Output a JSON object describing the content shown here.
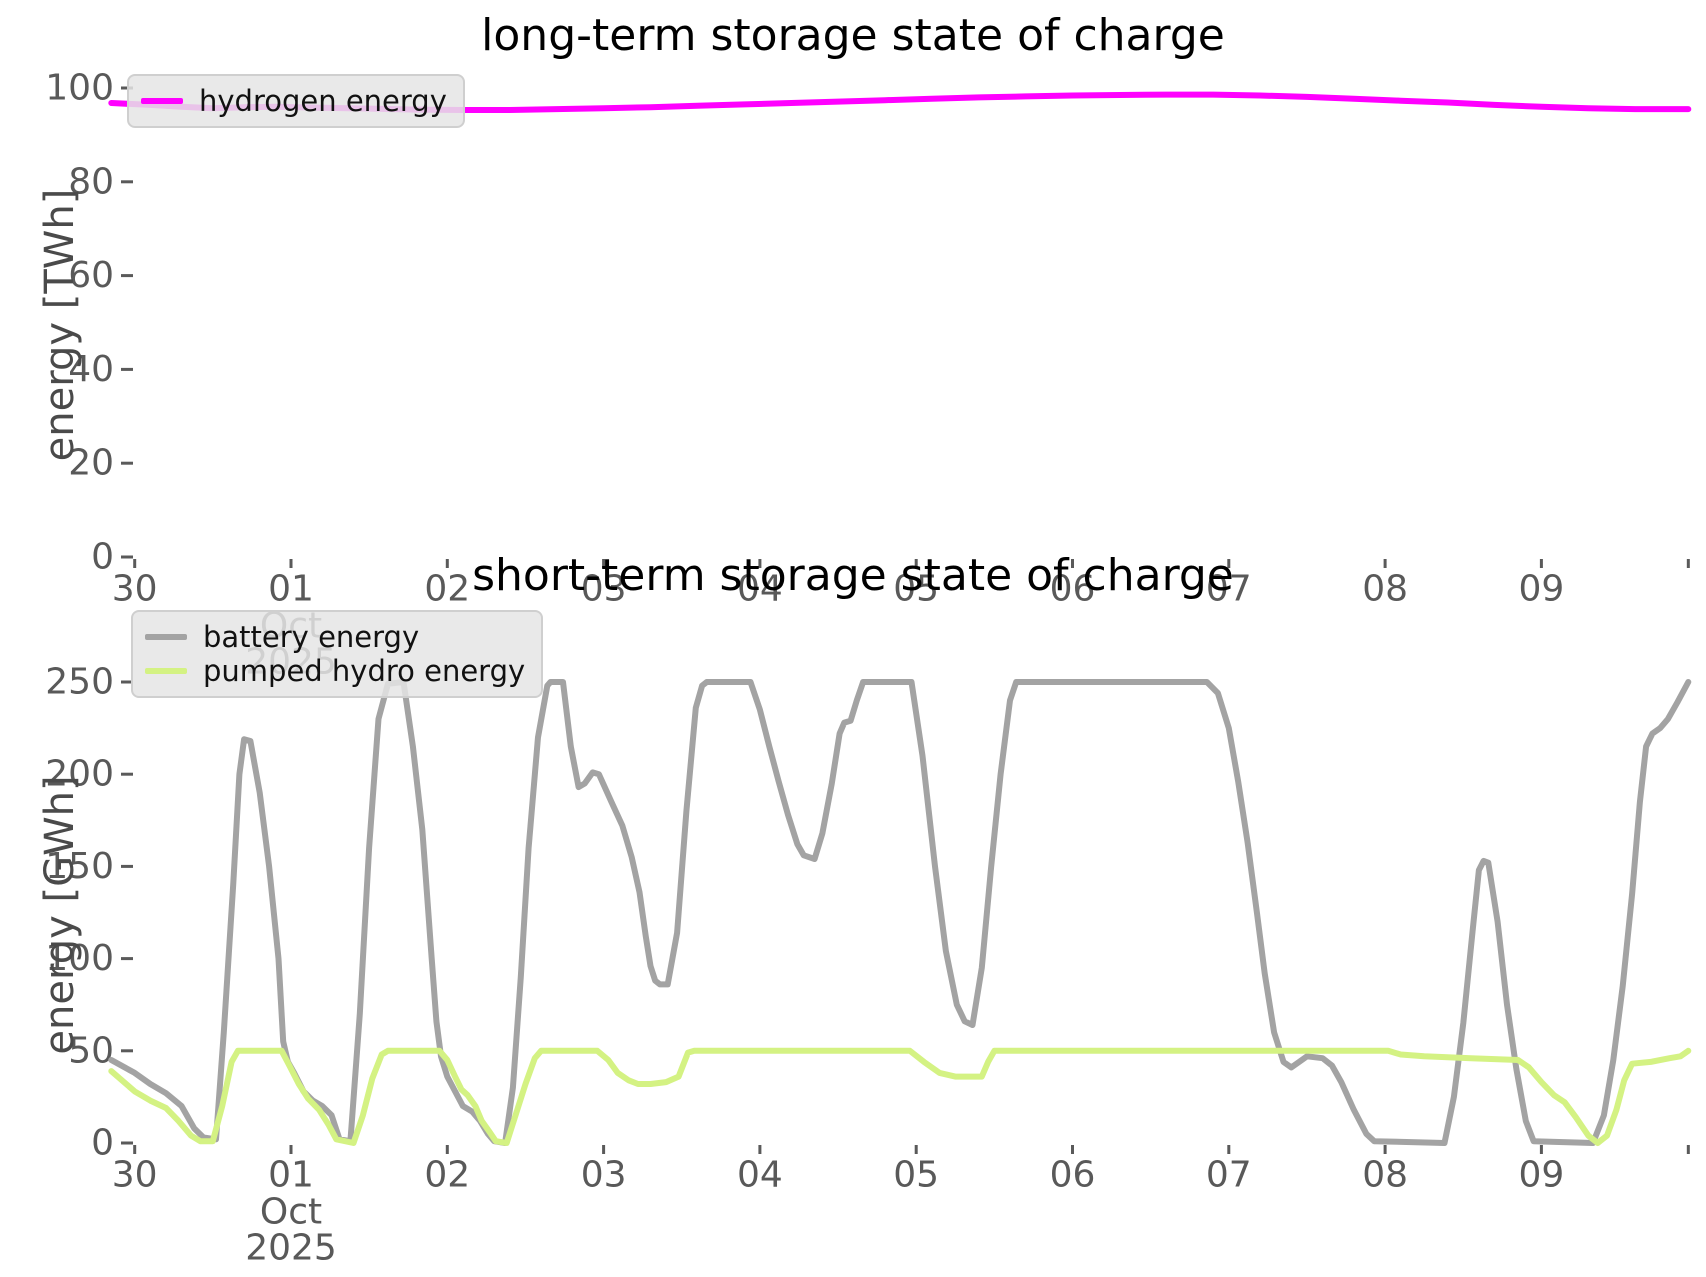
{
  "figure": {
    "background": "#ffffff",
    "tick_color": "#5a5a5a",
    "tick_label_color": "#595959"
  },
  "chart_data": [
    {
      "type": "line",
      "title": "long-term storage state of charge",
      "ylabel": "energy [TWh]",
      "xlabel": "",
      "grid": false,
      "legend_position": "upper left",
      "xlim": [
        -0.15,
        9.95
      ],
      "ylim": [
        0,
        107
      ],
      "x_ticks": {
        "values": [
          0,
          1,
          2,
          3,
          4,
          5,
          6,
          7,
          8,
          9,
          9.94
        ],
        "labels": [
          "30",
          "01",
          "02",
          "03",
          "04",
          "05",
          "06",
          "07",
          "08",
          "09",
          ""
        ]
      },
      "x_period_label": {
        "at": 1,
        "lines": [
          "Oct",
          "2025"
        ]
      },
      "y_ticks": [
        0,
        20,
        40,
        60,
        80,
        100
      ],
      "series": [
        {
          "name": "hydrogen energy",
          "color": "#FF00FF",
          "width": 6,
          "points": [
            [
              -0.15,
              96.8
            ],
            [
              0.1,
              96.4
            ],
            [
              0.3,
              96.0
            ],
            [
              0.5,
              95.7
            ],
            [
              0.7,
              95.9
            ],
            [
              0.9,
              96.0
            ],
            [
              1.2,
              95.8
            ],
            [
              1.5,
              95.6
            ],
            [
              1.8,
              95.4
            ],
            [
              2.1,
              95.3
            ],
            [
              2.4,
              95.3
            ],
            [
              2.7,
              95.5
            ],
            [
              3.0,
              95.7
            ],
            [
              3.3,
              95.9
            ],
            [
              3.6,
              96.2
            ],
            [
              3.9,
              96.5
            ],
            [
              4.2,
              96.8
            ],
            [
              4.5,
              97.1
            ],
            [
              4.8,
              97.4
            ],
            [
              5.1,
              97.7
            ],
            [
              5.4,
              98.0
            ],
            [
              5.7,
              98.2
            ],
            [
              6.0,
              98.4
            ],
            [
              6.3,
              98.5
            ],
            [
              6.6,
              98.6
            ],
            [
              6.9,
              98.6
            ],
            [
              7.2,
              98.4
            ],
            [
              7.5,
              98.1
            ],
            [
              7.8,
              97.7
            ],
            [
              8.1,
              97.3
            ],
            [
              8.4,
              96.9
            ],
            [
              8.7,
              96.4
            ],
            [
              9.0,
              96.0
            ],
            [
              9.3,
              95.7
            ],
            [
              9.6,
              95.5
            ],
            [
              9.94,
              95.5
            ]
          ]
        }
      ]
    },
    {
      "type": "line",
      "title": "short-term storage state of charge",
      "ylabel": "energy [GWh]",
      "xlabel": "",
      "grid": false,
      "legend_position": "upper left",
      "xlim": [
        -0.15,
        9.95
      ],
      "ylim": [
        0,
        262
      ],
      "x_ticks": {
        "values": [
          0,
          1,
          2,
          3,
          4,
          5,
          6,
          7,
          8,
          9,
          9.94
        ],
        "labels": [
          "30",
          "01",
          "02",
          "03",
          "04",
          "05",
          "06",
          "07",
          "08",
          "09",
          ""
        ]
      },
      "x_period_label": {
        "at": 1,
        "lines": [
          "Oct",
          "2025"
        ]
      },
      "y_ticks": [
        0,
        50,
        100,
        150,
        200,
        250
      ],
      "series": [
        {
          "name": "battery energy",
          "color": "#a3a3a3",
          "width": 6,
          "points": [
            [
              -0.15,
              45
            ],
            [
              0.0,
              38
            ],
            [
              0.1,
              32
            ],
            [
              0.2,
              27
            ],
            [
              0.3,
              20
            ],
            [
              0.38,
              8
            ],
            [
              0.44,
              3
            ],
            [
              0.52,
              2
            ],
            [
              0.57,
              60
            ],
            [
              0.63,
              140
            ],
            [
              0.67,
              200
            ],
            [
              0.7,
              219
            ],
            [
              0.74,
              218
            ],
            [
              0.8,
              190
            ],
            [
              0.86,
              150
            ],
            [
              0.92,
              100
            ],
            [
              0.95,
              55
            ],
            [
              0.98,
              44
            ],
            [
              1.02,
              38
            ],
            [
              1.08,
              28
            ],
            [
              1.14,
              23
            ],
            [
              1.2,
              20
            ],
            [
              1.26,
              15
            ],
            [
              1.31,
              2
            ],
            [
              1.38,
              1
            ],
            [
              1.44,
              70
            ],
            [
              1.5,
              160
            ],
            [
              1.56,
              230
            ],
            [
              1.62,
              249
            ],
            [
              1.72,
              250
            ],
            [
              1.78,
              215
            ],
            [
              1.84,
              170
            ],
            [
              1.9,
              100
            ],
            [
              1.93,
              66
            ],
            [
              1.96,
              47
            ],
            [
              2.0,
              36
            ],
            [
              2.05,
              28
            ],
            [
              2.1,
              20
            ],
            [
              2.16,
              17
            ],
            [
              2.21,
              12
            ],
            [
              2.26,
              5
            ],
            [
              2.3,
              1
            ],
            [
              2.37,
              0
            ],
            [
              2.42,
              30
            ],
            [
              2.47,
              90
            ],
            [
              2.52,
              160
            ],
            [
              2.58,
              220
            ],
            [
              2.64,
              248
            ],
            [
              2.66,
              250
            ],
            [
              2.74,
              250
            ],
            [
              2.79,
              215
            ],
            [
              2.84,
              193
            ],
            [
              2.88,
              195
            ],
            [
              2.93,
              201
            ],
            [
              2.97,
              200
            ],
            [
              3.05,
              185
            ],
            [
              3.12,
              172
            ],
            [
              3.18,
              155
            ],
            [
              3.23,
              136
            ],
            [
              3.27,
              112
            ],
            [
              3.3,
              96
            ],
            [
              3.33,
              88
            ],
            [
              3.36,
              86
            ],
            [
              3.41,
              86
            ],
            [
              3.47,
              114
            ],
            [
              3.53,
              180
            ],
            [
              3.59,
              236
            ],
            [
              3.63,
              248
            ],
            [
              3.66,
              250
            ],
            [
              3.94,
              250
            ],
            [
              4.0,
              235
            ],
            [
              4.06,
              215
            ],
            [
              4.12,
              196
            ],
            [
              4.18,
              178
            ],
            [
              4.24,
              162
            ],
            [
              4.28,
              156
            ],
            [
              4.35,
              154
            ],
            [
              4.4,
              168
            ],
            [
              4.46,
              195
            ],
            [
              4.51,
              222
            ],
            [
              4.54,
              228
            ],
            [
              4.58,
              229
            ],
            [
              4.62,
              240
            ],
            [
              4.66,
              250
            ],
            [
              4.97,
              250
            ],
            [
              5.04,
              210
            ],
            [
              5.12,
              150
            ],
            [
              5.19,
              104
            ],
            [
              5.26,
              75
            ],
            [
              5.31,
              66
            ],
            [
              5.36,
              64
            ],
            [
              5.42,
              95
            ],
            [
              5.48,
              150
            ],
            [
              5.54,
              200
            ],
            [
              5.6,
              240
            ],
            [
              5.64,
              250
            ],
            [
              6.86,
              250
            ],
            [
              6.93,
              244
            ],
            [
              7.0,
              225
            ],
            [
              7.06,
              196
            ],
            [
              7.12,
              163
            ],
            [
              7.18,
              125
            ],
            [
              7.23,
              92
            ],
            [
              7.29,
              60
            ],
            [
              7.35,
              44
            ],
            [
              7.4,
              41
            ],
            [
              7.45,
              44
            ],
            [
              7.5,
              47
            ],
            [
              7.6,
              46
            ],
            [
              7.66,
              42
            ],
            [
              7.72,
              33
            ],
            [
              7.8,
              18
            ],
            [
              7.88,
              5
            ],
            [
              7.93,
              1
            ],
            [
              8.38,
              0
            ],
            [
              8.44,
              25
            ],
            [
              8.5,
              65
            ],
            [
              8.56,
              115
            ],
            [
              8.6,
              148
            ],
            [
              8.63,
              153
            ],
            [
              8.66,
              152
            ],
            [
              8.72,
              120
            ],
            [
              8.78,
              75
            ],
            [
              8.84,
              40
            ],
            [
              8.9,
              12
            ],
            [
              8.95,
              1
            ],
            [
              9.33,
              0
            ],
            [
              9.4,
              15
            ],
            [
              9.46,
              45
            ],
            [
              9.52,
              85
            ],
            [
              9.58,
              135
            ],
            [
              9.63,
              185
            ],
            [
              9.67,
              215
            ],
            [
              9.71,
              222
            ],
            [
              9.76,
              225
            ],
            [
              9.81,
              230
            ],
            [
              9.87,
              239
            ],
            [
              9.94,
              250
            ]
          ]
        },
        {
          "name": "pumped hydro energy",
          "color": "#d4f283",
          "width": 6,
          "points": [
            [
              -0.15,
              39
            ],
            [
              0.0,
              28
            ],
            [
              0.1,
              23
            ],
            [
              0.2,
              19
            ],
            [
              0.28,
              12
            ],
            [
              0.36,
              4
            ],
            [
              0.42,
              1
            ],
            [
              0.5,
              1
            ],
            [
              0.56,
              20
            ],
            [
              0.62,
              44
            ],
            [
              0.66,
              50
            ],
            [
              0.94,
              50
            ],
            [
              0.99,
              42
            ],
            [
              1.05,
              32
            ],
            [
              1.11,
              24
            ],
            [
              1.18,
              18
            ],
            [
              1.24,
              10
            ],
            [
              1.29,
              2
            ],
            [
              1.4,
              0
            ],
            [
              1.46,
              15
            ],
            [
              1.52,
              35
            ],
            [
              1.58,
              48
            ],
            [
              1.62,
              50
            ],
            [
              1.95,
              50
            ],
            [
              2.0,
              45
            ],
            [
              2.05,
              36
            ],
            [
              2.09,
              29
            ],
            [
              2.13,
              26
            ],
            [
              2.18,
              20
            ],
            [
              2.22,
              12
            ],
            [
              2.27,
              6
            ],
            [
              2.31,
              1
            ],
            [
              2.38,
              0
            ],
            [
              2.44,
              16
            ],
            [
              2.5,
              32
            ],
            [
              2.56,
              46
            ],
            [
              2.6,
              50
            ],
            [
              2.96,
              50
            ],
            [
              3.03,
              45
            ],
            [
              3.09,
              38
            ],
            [
              3.16,
              34
            ],
            [
              3.22,
              32
            ],
            [
              3.3,
              32
            ],
            [
              3.4,
              33
            ],
            [
              3.48,
              36
            ],
            [
              3.54,
              49
            ],
            [
              3.58,
              50
            ],
            [
              4.96,
              50
            ],
            [
              5.05,
              44
            ],
            [
              5.15,
              38
            ],
            [
              5.25,
              36
            ],
            [
              5.42,
              36
            ],
            [
              5.46,
              44
            ],
            [
              5.5,
              50
            ],
            [
              8.02,
              50
            ],
            [
              8.1,
              48
            ],
            [
              8.25,
              47
            ],
            [
              8.55,
              46
            ],
            [
              8.85,
              45
            ],
            [
              8.92,
              41
            ],
            [
              9.0,
              33
            ],
            [
              9.08,
              26
            ],
            [
              9.15,
              22
            ],
            [
              9.22,
              14
            ],
            [
              9.3,
              4
            ],
            [
              9.36,
              0
            ],
            [
              9.42,
              4
            ],
            [
              9.48,
              18
            ],
            [
              9.53,
              34
            ],
            [
              9.58,
              43
            ],
            [
              9.7,
              44
            ],
            [
              9.82,
              46
            ],
            [
              9.89,
              47
            ],
            [
              9.94,
              50
            ]
          ]
        }
      ]
    }
  ]
}
